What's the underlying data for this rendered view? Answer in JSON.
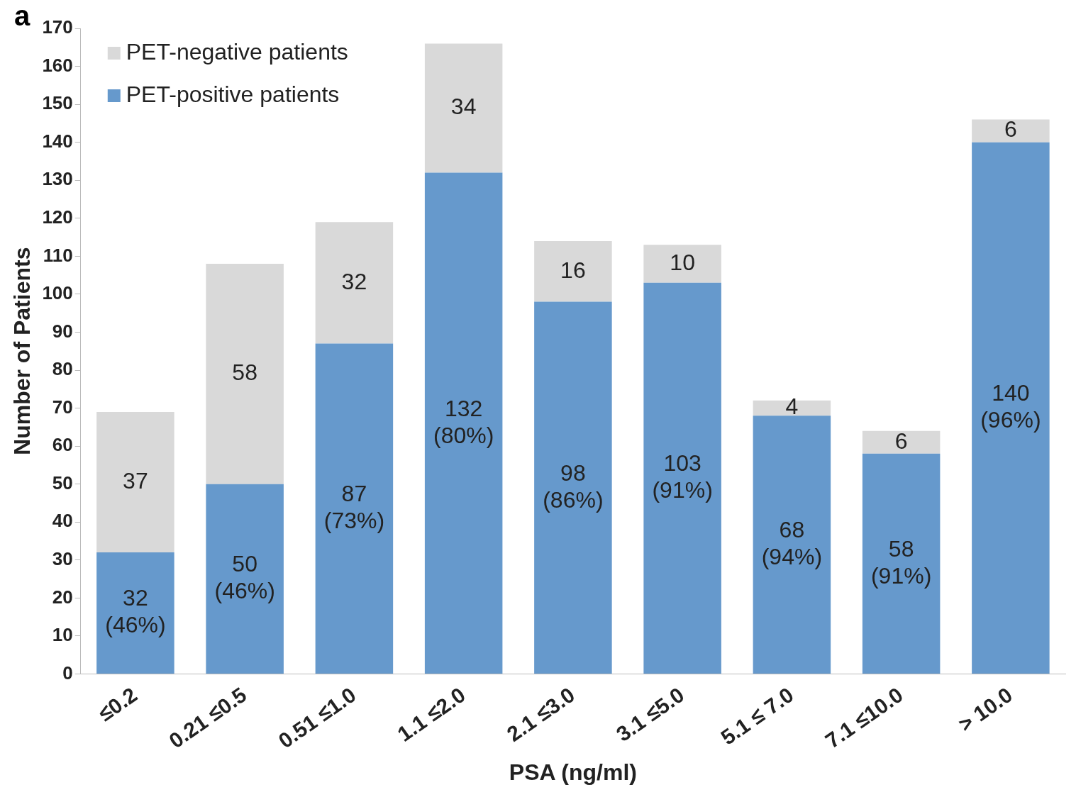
{
  "chart_data": {
    "type": "bar",
    "stacked": true,
    "xlabel": "PSA (ng/ml)",
    "ylabel": "Number of Patients",
    "categories": [
      "≤0.2",
      "0.21 ≤0.5",
      "0.51 ≤1.0",
      "1.1 ≤2.0",
      "2.1 ≤3.0",
      "3.1 ≤5.0",
      "5.1 ≤ 7.0",
      "7.1 ≤10.0",
      "> 10.0"
    ],
    "series": [
      {
        "name": "PET-positive patients",
        "color": "#6699cc",
        "values": [
          32,
          50,
          87,
          132,
          98,
          103,
          68,
          58,
          140
        ],
        "value_labels": [
          "32\n(46%)",
          "50\n(46%)",
          "87\n(73%)",
          "132\n(80%)",
          "98\n(86%)",
          "103\n(91%)",
          "68\n(94%)",
          "58\n(91%)",
          "140\n(96%)"
        ]
      },
      {
        "name": "PET-negative patients",
        "color": "#d9d9d9",
        "values": [
          37,
          58,
          32,
          34,
          16,
          10,
          4,
          6,
          6
        ],
        "value_labels": [
          "37",
          "58",
          "32",
          "34",
          "16",
          "10",
          "4",
          "6",
          "6"
        ]
      }
    ],
    "ylim": [
      0,
      170
    ],
    "yticks": [
      0,
      10,
      20,
      30,
      40,
      50,
      60,
      70,
      80,
      90,
      100,
      110,
      120,
      130,
      140,
      150,
      160,
      170
    ],
    "grid": false,
    "legend": "top left",
    "annotations": [
      "a"
    ]
  }
}
